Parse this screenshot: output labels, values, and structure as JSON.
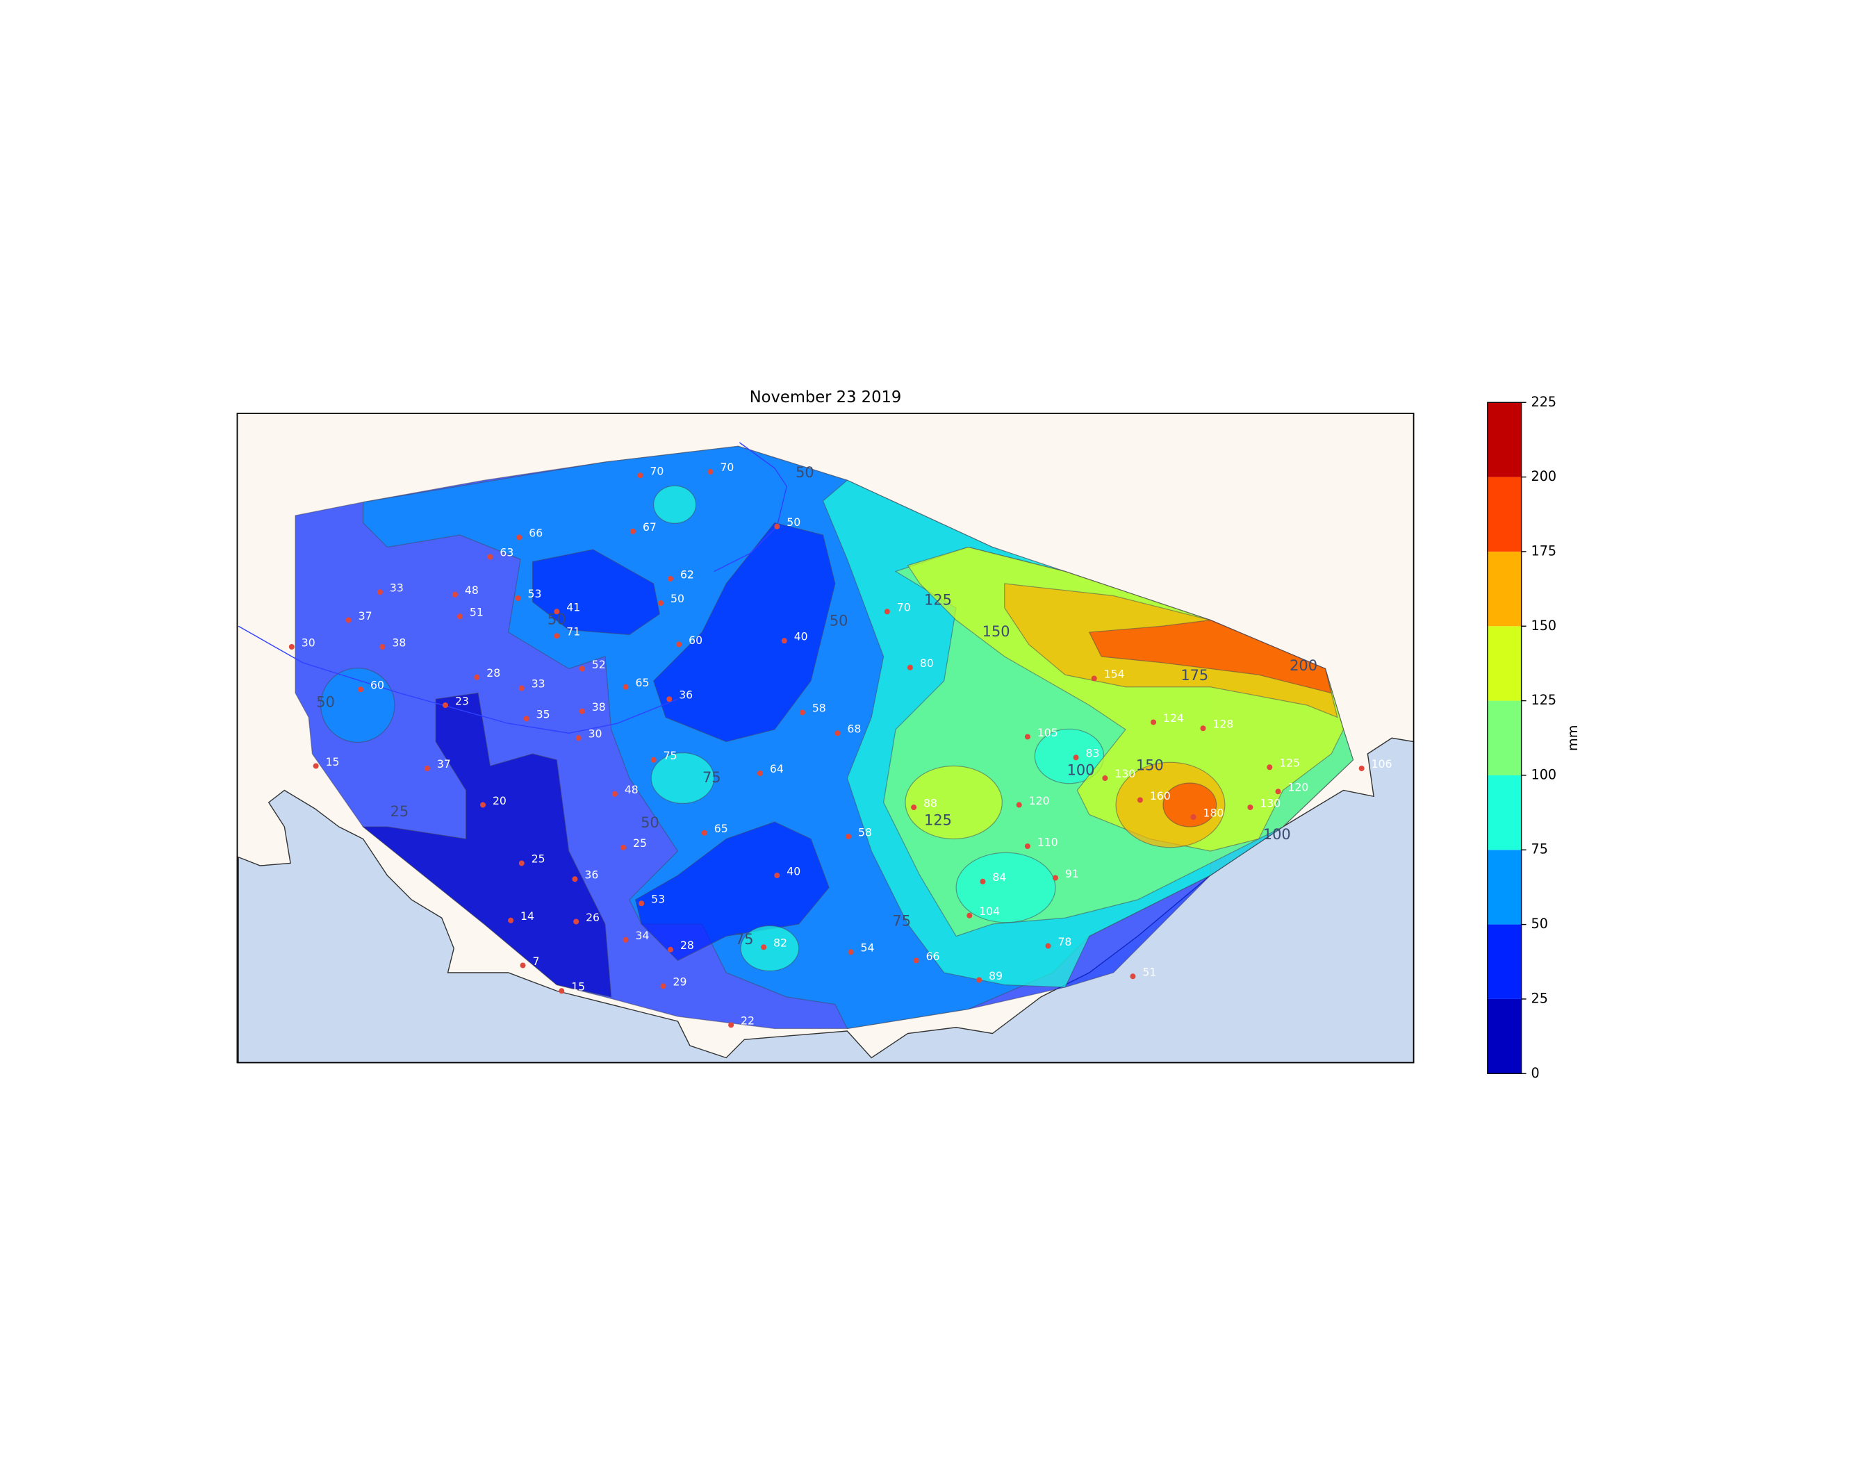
{
  "title": "November 23 2019",
  "colorbar": {
    "label": "mm",
    "levels": [
      0,
      25,
      50,
      75,
      100,
      125,
      150,
      175,
      200,
      225
    ],
    "colors": [
      "#0000c0",
      "#0022ff",
      "#0096ff",
      "#1effdc",
      "#7dff7a",
      "#d4ff1a",
      "#ffb000",
      "#ff4400",
      "#c00000"
    ]
  },
  "stations": [
    70,
    70,
    50,
    66,
    67,
    63,
    62,
    33,
    48,
    53,
    50,
    41,
    51,
    37,
    70,
    30,
    38,
    71,
    60,
    40,
    80,
    154,
    28,
    52,
    33,
    65,
    36,
    60,
    23,
    35,
    38,
    58,
    124,
    128,
    30,
    68,
    105,
    83,
    106,
    125,
    15,
    37,
    75,
    64,
    130,
    160,
    120,
    20,
    48,
    88,
    120,
    130,
    180,
    65,
    58,
    110,
    25,
    25,
    36,
    40,
    84,
    91,
    53,
    104,
    14,
    26,
    34,
    82,
    28,
    78,
    54,
    66,
    89,
    51,
    7,
    29,
    15,
    22
  ],
  "contour_labels": [
    50,
    50,
    50,
    50,
    50,
    125,
    150,
    125,
    25,
    75,
    75,
    75,
    100,
    150,
    100,
    200,
    175
  ]
}
